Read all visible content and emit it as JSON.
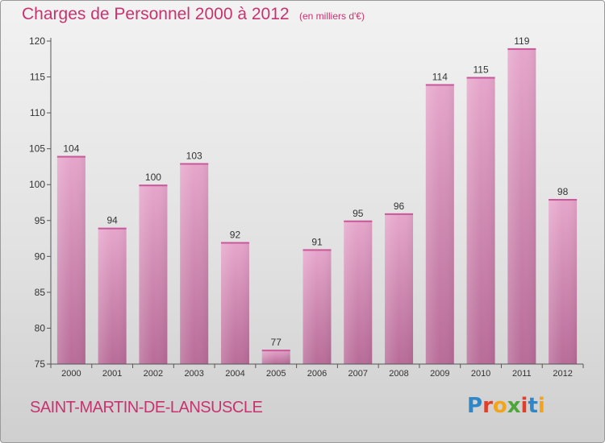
{
  "header": {
    "title": "Charges de Personnel 2000 à 2012",
    "subtitle": "(en milliers d'€)"
  },
  "footer": {
    "commune": "SAINT-MARTIN-DE-LANSUSCLE",
    "logo": {
      "letters": [
        "P",
        "r",
        "o",
        "x",
        "i",
        "t",
        "i"
      ],
      "colors": [
        "#2f87c8",
        "#e0402a",
        "#f2a51a",
        "#4ea63a",
        "#e0402a",
        "#2f87c8",
        "#f2a51a"
      ]
    }
  },
  "chart_data": {
    "type": "bar",
    "categories": [
      "2000",
      "2001",
      "2002",
      "2003",
      "2004",
      "2005",
      "2006",
      "2007",
      "2008",
      "2009",
      "2010",
      "2011",
      "2012"
    ],
    "values": [
      104,
      94,
      100,
      103,
      92,
      77,
      91,
      95,
      96,
      114,
      115,
      119,
      98
    ],
    "yticks": [
      75,
      80,
      85,
      90,
      95,
      100,
      105,
      110,
      115,
      120
    ],
    "ylim": [
      75,
      120
    ],
    "bar_color": "#cf7aab",
    "grid": false
  }
}
